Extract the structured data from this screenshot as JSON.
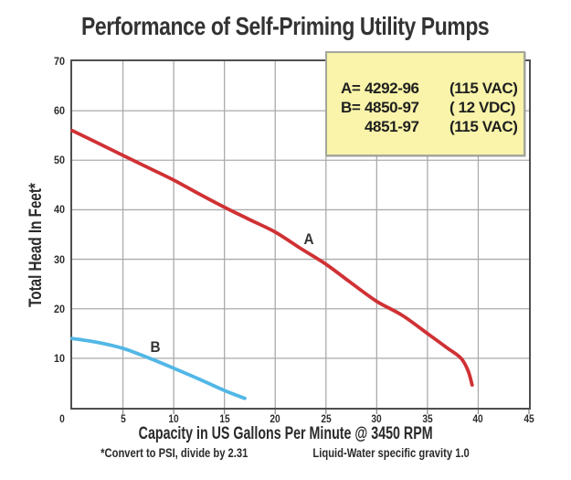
{
  "title": "Performance of Self-Priming Utility Pumps",
  "chart_data": {
    "type": "line",
    "title": "Performance of Self-Priming Utility Pumps",
    "xlabel": "Capacity in US Gallons Per Minute @ 3450 RPM",
    "ylabel": "Total Head In Feet*",
    "xlim": [
      0,
      45
    ],
    "ylim": [
      0,
      70
    ],
    "x_ticks": [
      0,
      5,
      10,
      15,
      20,
      25,
      30,
      35,
      40,
      45
    ],
    "y_ticks": [
      0,
      10,
      20,
      30,
      40,
      50,
      60,
      70
    ],
    "grid": true,
    "gridline_color": "#ababab",
    "legend_position": "top-right",
    "series": [
      {
        "name": "A",
        "color": "#d03134",
        "label_at": [
          23.3,
          34
        ],
        "points": [
          [
            0,
            56
          ],
          [
            2.5,
            53.5
          ],
          [
            5,
            51
          ],
          [
            7.5,
            48.5
          ],
          [
            10,
            46
          ],
          [
            12.5,
            43.2
          ],
          [
            15,
            40.5
          ],
          [
            17.5,
            38
          ],
          [
            20,
            35.5
          ],
          [
            22.5,
            32.2
          ],
          [
            25,
            29
          ],
          [
            27.5,
            25.2
          ],
          [
            30,
            21.5
          ],
          [
            32.5,
            18.7
          ],
          [
            35,
            15
          ],
          [
            36,
            13.5
          ],
          [
            37,
            12
          ],
          [
            38.3,
            10
          ],
          [
            39,
            7.5
          ],
          [
            39.4,
            4.6
          ]
        ]
      },
      {
        "name": "B",
        "color": "#52b7e6",
        "label_at": [
          8.2,
          12.2
        ],
        "points": [
          [
            0,
            14
          ],
          [
            2.5,
            13.2
          ],
          [
            5,
            12
          ],
          [
            7.5,
            10.1
          ],
          [
            10,
            8
          ],
          [
            12.5,
            5.8
          ],
          [
            15,
            3.5
          ],
          [
            17,
            1.9
          ]
        ]
      }
    ],
    "footnotes": [
      "*Convert to PSI, divide by 2.31",
      "Liquid-Water specific gravity 1.0"
    ]
  },
  "legend": {
    "background": "#f9f4a9",
    "rows": [
      {
        "prefix": "A=",
        "model": "4292-96",
        "voltage": "(115 VAC)"
      },
      {
        "prefix": "B=",
        "model": "4850-97",
        "voltage": "( 12 VDC)"
      },
      {
        "prefix": "",
        "model": "4851-97",
        "voltage": "(115 VAC)"
      }
    ]
  },
  "colors": {
    "plot_border": "#4f4f4f",
    "gridline": "#ababab",
    "tick_mark": "#8a8a8a",
    "text": "#2a2a2a",
    "curve_a": "#d03134",
    "curve_b": "#52b7e6",
    "legend_bg": "#f9f4a9"
  }
}
